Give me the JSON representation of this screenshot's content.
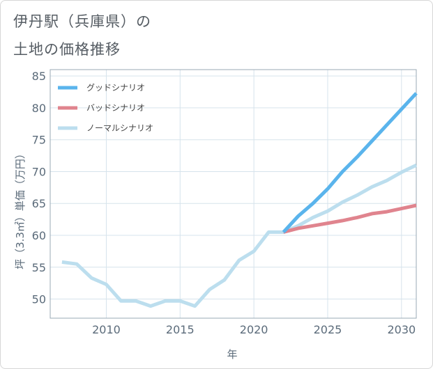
{
  "page": {
    "title_line1": "伊丹駅（兵庫県）の",
    "title_line2": "土地の価格推移"
  },
  "colors": {
    "good": "#5ab4ec",
    "bad": "#e0848e",
    "normal": "#bcdeee",
    "grid": "#d6e3ec",
    "frame": "#9aa8b4"
  },
  "chart_data": {
    "type": "line",
    "title": "伊丹駅（兵庫県）の土地の価格推移",
    "xlabel": "年",
    "ylabel": "坪（3.3㎡）単価（万円）",
    "xlim": [
      2006.2,
      2031
    ],
    "ylim": [
      47,
      86
    ],
    "xticks": [
      2010,
      2015,
      2020,
      2025,
      2030
    ],
    "yticks": [
      50,
      55,
      60,
      65,
      70,
      75,
      80,
      85
    ],
    "legend_position": "top-left",
    "series": [
      {
        "name": "グッドシナリオ",
        "color": "#5ab4ec",
        "x": [
          2022,
          2023,
          2024,
          2025,
          2026,
          2027,
          2028,
          2029,
          2030,
          2031
        ],
        "values": [
          60.5,
          63.0,
          65.0,
          67.3,
          70.0,
          72.3,
          74.8,
          77.3,
          79.8,
          82.3
        ]
      },
      {
        "name": "バッドシナリオ",
        "color": "#e0848e",
        "x": [
          2022,
          2023,
          2024,
          2025,
          2026,
          2027,
          2028,
          2029,
          2030,
          2031
        ],
        "values": [
          60.5,
          61.1,
          61.5,
          61.9,
          62.3,
          62.8,
          63.4,
          63.7,
          64.2,
          64.7
        ]
      },
      {
        "name": "ノーマルシナリオ",
        "color": "#bcdeee",
        "x": [
          2007,
          2008,
          2009,
          2010,
          2011,
          2012,
          2013,
          2014,
          2015,
          2016,
          2017,
          2018,
          2019,
          2020,
          2021,
          2022,
          2023,
          2024,
          2025,
          2026,
          2027,
          2028,
          2029,
          2030,
          2031
        ],
        "values": [
          55.8,
          55.5,
          53.3,
          52.3,
          49.7,
          49.7,
          48.9,
          49.7,
          49.7,
          48.9,
          51.5,
          53.0,
          56.1,
          57.5,
          60.5,
          60.5,
          61.5,
          62.8,
          63.8,
          65.2,
          66.3,
          67.6,
          68.6,
          69.9,
          71.0
        ]
      }
    ]
  }
}
